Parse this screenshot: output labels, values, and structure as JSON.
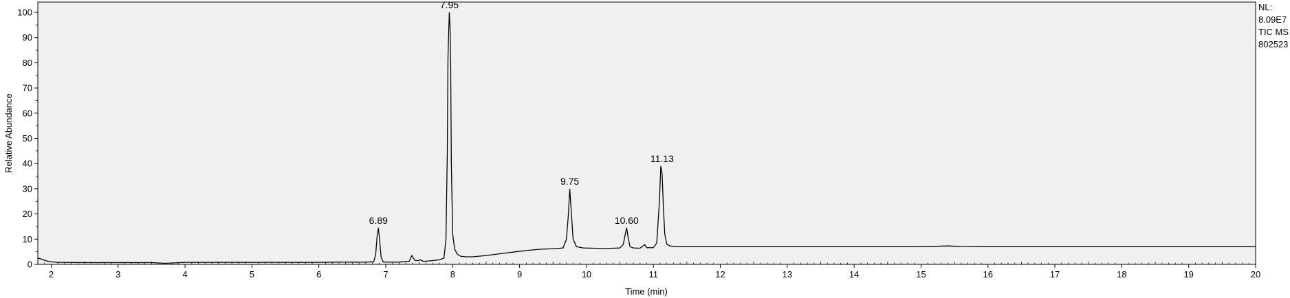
{
  "info": {
    "nl_label": "NL:",
    "nl_value": "8.09E7",
    "trace": "TIC  MS",
    "sample": "802523"
  },
  "chart_data": {
    "type": "line",
    "title": "",
    "xlabel": "Time (min)",
    "ylabel": "Relative Abundance",
    "xlim": [
      1.8,
      20
    ],
    "ylim": [
      0,
      100
    ],
    "x_ticks": [
      2,
      3,
      4,
      5,
      6,
      7,
      8,
      9,
      10,
      11,
      12,
      13,
      14,
      15,
      16,
      17,
      18,
      19,
      20
    ],
    "y_ticks": [
      0,
      10,
      20,
      30,
      40,
      50,
      60,
      70,
      80,
      90,
      100
    ],
    "grid": false,
    "series": [
      {
        "color": "#000000",
        "x": [
          1.8,
          1.84,
          1.88,
          1.95,
          2.1,
          2.5,
          3.0,
          3.5,
          3.7,
          4.0,
          4.5,
          5.0,
          5.5,
          6.0,
          6.3,
          6.5,
          6.7,
          6.82,
          6.85,
          6.87,
          6.89,
          6.91,
          6.93,
          6.96,
          7.0,
          7.2,
          7.35,
          7.39,
          7.41,
          7.44,
          7.48,
          7.52,
          7.55,
          7.58,
          7.62,
          7.7,
          7.8,
          7.87,
          7.9,
          7.92,
          7.93,
          7.94,
          7.95,
          7.96,
          7.97,
          7.98,
          8.0,
          8.03,
          8.07,
          8.12,
          8.2,
          8.3,
          8.5,
          8.7,
          9.0,
          9.3,
          9.5,
          9.65,
          9.7,
          9.73,
          9.75,
          9.77,
          9.8,
          9.85,
          9.95,
          10.1,
          10.3,
          10.5,
          10.55,
          10.58,
          10.6,
          10.62,
          10.65,
          10.7,
          10.8,
          10.87,
          10.9,
          11.0,
          11.05,
          11.09,
          11.11,
          11.13,
          11.15,
          11.17,
          11.2,
          11.25,
          11.35,
          11.5,
          12.0,
          13.0,
          14.0,
          15.0,
          15.4,
          15.6,
          16.0,
          17.0,
          18.0,
          19.0,
          20.0
        ],
        "y": [
          2.5,
          2.2,
          1.8,
          1.2,
          0.8,
          0.7,
          0.7,
          0.7,
          0.4,
          0.8,
          0.8,
          0.8,
          0.8,
          0.8,
          0.9,
          0.9,
          0.9,
          1.0,
          4.0,
          11.0,
          14.5,
          9.0,
          3.0,
          1.0,
          0.9,
          0.9,
          1.2,
          3.5,
          2.5,
          1.5,
          1.5,
          1.8,
          1.3,
          1.2,
          1.3,
          1.5,
          1.8,
          2.5,
          10.0,
          45.0,
          82.0,
          92.0,
          100.0,
          95.0,
          80.0,
          40.0,
          12.0,
          6.0,
          4.0,
          3.2,
          3.0,
          3.0,
          3.5,
          4.2,
          5.2,
          6.0,
          6.2,
          6.5,
          10.0,
          20.0,
          30.0,
          22.0,
          10.0,
          7.0,
          6.5,
          6.4,
          6.3,
          6.5,
          8.0,
          12.0,
          14.5,
          11.0,
          7.0,
          6.5,
          6.4,
          7.8,
          6.6,
          6.6,
          8.5,
          25.0,
          39.0,
          36.0,
          22.0,
          12.0,
          8.0,
          7.3,
          7.0,
          7.0,
          7.0,
          7.0,
          7.0,
          7.0,
          7.3,
          7.1,
          7.0,
          7.0,
          7.0,
          7.0,
          7.0
        ]
      }
    ],
    "annotations": [
      {
        "x": 6.89,
        "y": 14.5,
        "text": "6.89"
      },
      {
        "x": 7.95,
        "y": 100,
        "text": "7.95"
      },
      {
        "x": 9.75,
        "y": 30,
        "text": "9.75"
      },
      {
        "x": 10.6,
        "y": 14.5,
        "text": "10.60"
      },
      {
        "x": 11.13,
        "y": 39,
        "text": "11.13"
      }
    ]
  }
}
